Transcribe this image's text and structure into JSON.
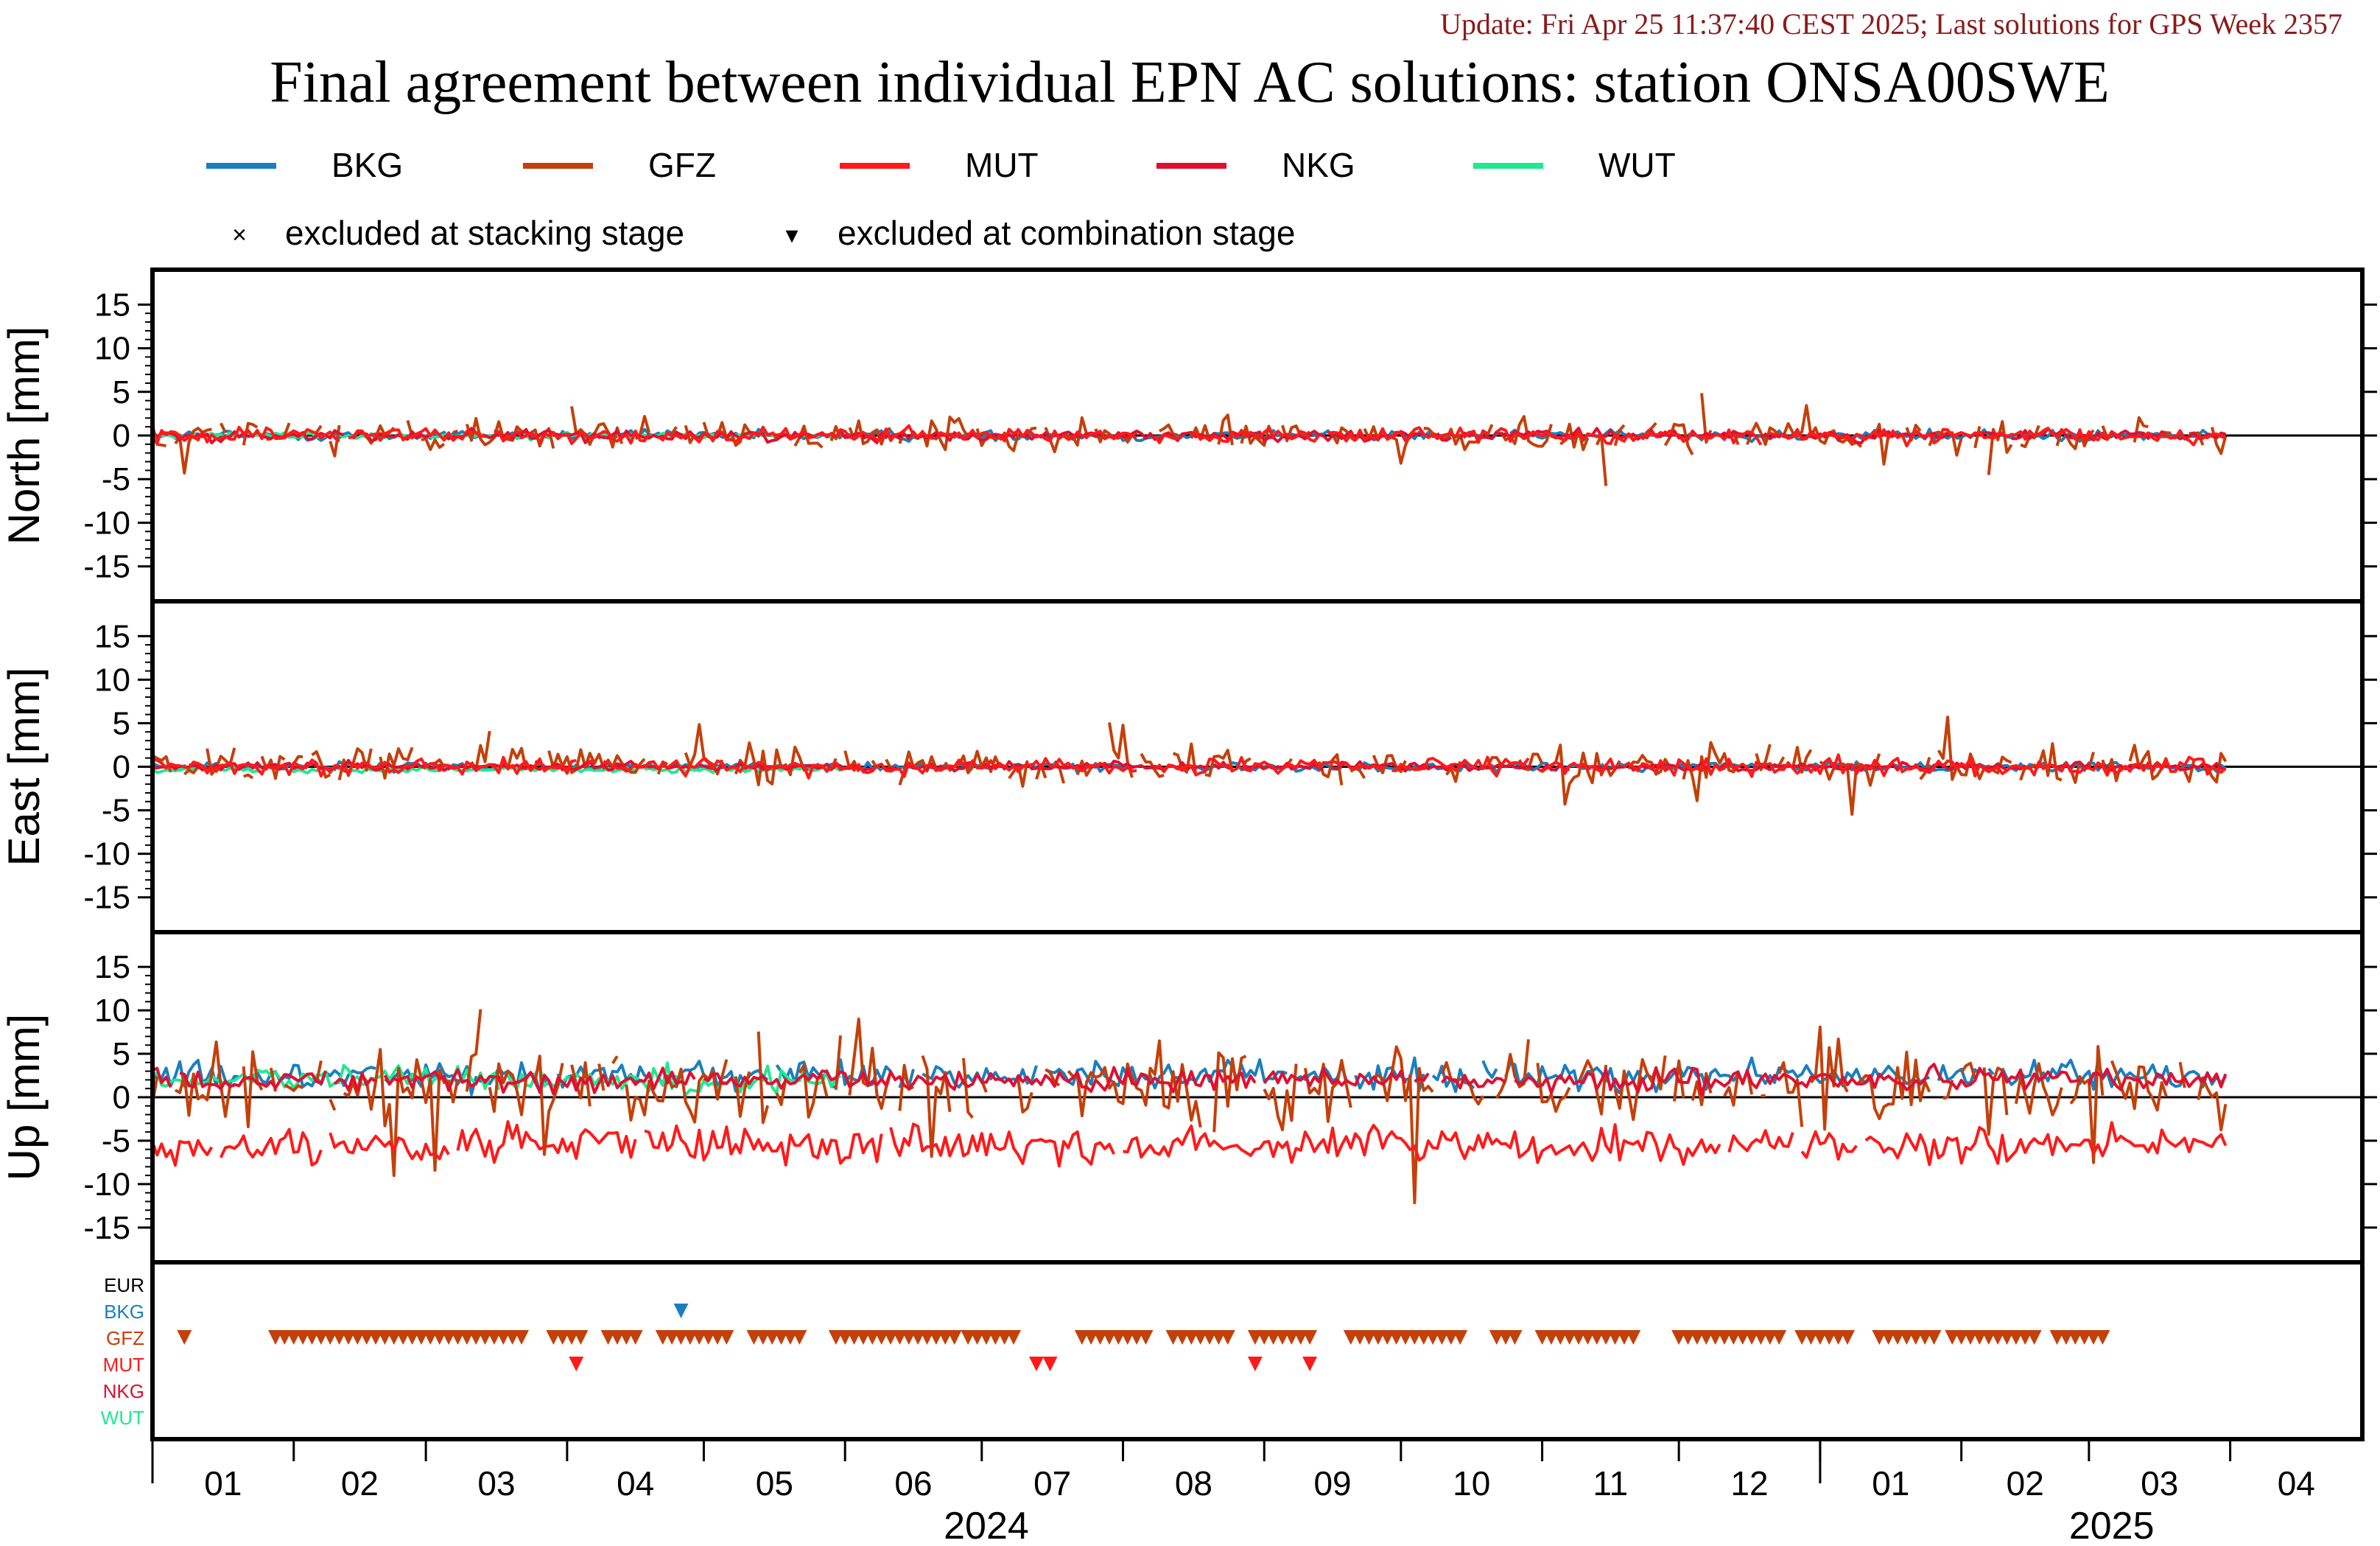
{
  "update_line": "Update: Fri Apr 25 11:37:40 CEST 2025; Last solutions for GPS Week 2357",
  "chart_data": {
    "type": "line",
    "title": "Final agreement between individual EPN AC solutions: station ONSA00SWE",
    "legend": {
      "placement": "top",
      "series": [
        {
          "name": "BKG",
          "color": "#1a7fc0"
        },
        {
          "name": "GFZ",
          "color": "#c4400a"
        },
        {
          "name": "MUT",
          "color": "#ff1a1a"
        },
        {
          "name": "NKG",
          "color": "#e01030"
        },
        {
          "name": "WUT",
          "color": "#20e890"
        }
      ],
      "markers": [
        {
          "symbol": "×",
          "label": "excluded at stacking stage"
        },
        {
          "symbol": "▾",
          "label": "excluded at combination stage"
        }
      ]
    },
    "x": {
      "start": "2024-01-01",
      "end": "2025-04-30",
      "month_labels": [
        "01",
        "02",
        "03",
        "04",
        "05",
        "06",
        "07",
        "08",
        "09",
        "10",
        "11",
        "12",
        "01",
        "02",
        "03",
        "04"
      ],
      "year_labels": [
        "2024",
        "2025"
      ]
    },
    "panels": [
      {
        "ylabel": "North [mm]",
        "ylim": [
          -19,
          19
        ],
        "yticks": [
          15,
          10,
          5,
          0,
          -5,
          -10,
          -15
        ],
        "grid": false,
        "zero_line": true,
        "series_summary": {
          "BKG": {
            "mean": 0.0,
            "spread": 0.5,
            "range": [
              "2024-01-01",
              "2025-03-31"
            ]
          },
          "GFZ": {
            "mean": 0.0,
            "spread": 1.6,
            "range": [
              "2024-01-01",
              "2025-03-31"
            ]
          },
          "MUT": {
            "mean": 0.0,
            "spread": 0.7,
            "range": [
              "2024-01-01",
              "2025-03-31"
            ]
          },
          "NKG": {
            "mean": 0.0,
            "spread": 0.5,
            "range": [
              "2024-01-01",
              "2025-03-31"
            ]
          },
          "WUT": {
            "mean": 0.0,
            "spread": 0.3,
            "range": [
              "2024-01-01",
              "2024-05-31"
            ]
          }
        }
      },
      {
        "ylabel": "East [mm]",
        "ylim": [
          -19,
          19
        ],
        "yticks": [
          15,
          10,
          5,
          0,
          -5,
          -10,
          -15
        ],
        "grid": false,
        "zero_line": true,
        "series_summary": {
          "BKG": {
            "mean": 0.0,
            "spread": 0.4,
            "range": [
              "2024-01-01",
              "2025-03-31"
            ]
          },
          "GFZ": {
            "mean": 0.3,
            "spread": 1.9,
            "range": [
              "2024-01-01",
              "2025-03-31"
            ]
          },
          "MUT": {
            "mean": 0.0,
            "spread": 0.8,
            "range": [
              "2024-01-01",
              "2025-03-31"
            ]
          },
          "NKG": {
            "mean": 0.0,
            "spread": 0.4,
            "range": [
              "2024-01-01",
              "2025-03-31"
            ]
          },
          "WUT": {
            "mean": -0.3,
            "spread": 0.3,
            "range": [
              "2024-01-01",
              "2024-05-31"
            ]
          }
        }
      },
      {
        "ylabel": "Up [mm]",
        "ylim": [
          -19,
          19
        ],
        "yticks": [
          15,
          10,
          5,
          0,
          -5,
          -10,
          -15
        ],
        "grid": false,
        "zero_line": true,
        "series_summary": {
          "BKG": {
            "mean": 2.5,
            "spread": 1.3,
            "range": [
              "2024-01-01",
              "2025-03-31"
            ]
          },
          "GFZ": {
            "mean": 1.5,
            "spread": 3.5,
            "range": [
              "2024-01-01",
              "2025-03-31"
            ]
          },
          "MUT": {
            "mean": -5.5,
            "spread": 1.8,
            "range": [
              "2024-01-01",
              "2025-03-31"
            ]
          },
          "NKG": {
            "mean": 2.0,
            "spread": 1.0,
            "range": [
              "2024-01-01",
              "2025-03-31"
            ]
          },
          "WUT": {
            "mean": 2.0,
            "spread": 1.2,
            "range": [
              "2024-01-01",
              "2024-05-31"
            ]
          }
        }
      }
    ],
    "exclusions": {
      "rows": [
        {
          "name": "EUR",
          "color": "#000000"
        },
        {
          "name": "BKG",
          "color": "#1a7fc0"
        },
        {
          "name": "GFZ",
          "color": "#c4400a"
        },
        {
          "name": "MUT",
          "color": "#ff1a1a"
        },
        {
          "name": "NKG",
          "color": "#e01030"
        },
        {
          "name": "WUT",
          "color": "#20e890"
        }
      ],
      "events": {
        "BKG": [
          "2024-04-26"
        ],
        "MUT": [
          "2024-04-03",
          "2024-07-13",
          "2024-07-16",
          "2024-08-30",
          "2024-09-11"
        ],
        "GFZ_ranges": [
          [
            "2024-01-08",
            "2024-01-08"
          ],
          [
            "2024-01-28",
            "2024-03-22"
          ],
          [
            "2024-03-29",
            "2024-04-05"
          ],
          [
            "2024-04-10",
            "2024-04-17"
          ],
          [
            "2024-04-22",
            "2024-05-07"
          ],
          [
            "2024-05-12",
            "2024-05-22"
          ],
          [
            "2024-05-30",
            "2024-06-25"
          ],
          [
            "2024-06-28",
            "2024-07-09"
          ],
          [
            "2024-07-23",
            "2024-08-06"
          ],
          [
            "2024-08-12",
            "2024-08-25"
          ],
          [
            "2024-08-30",
            "2024-09-12"
          ],
          [
            "2024-09-20",
            "2024-10-15"
          ],
          [
            "2024-10-22",
            "2024-10-26"
          ],
          [
            "2024-11-01",
            "2024-11-22"
          ],
          [
            "2024-12-01",
            "2024-12-23"
          ],
          [
            "2024-12-28",
            "2025-01-08"
          ],
          [
            "2025-01-14",
            "2025-01-27"
          ],
          [
            "2025-01-30",
            "2025-02-17"
          ],
          [
            "2025-02-22",
            "2025-03-05"
          ]
        ]
      }
    }
  }
}
